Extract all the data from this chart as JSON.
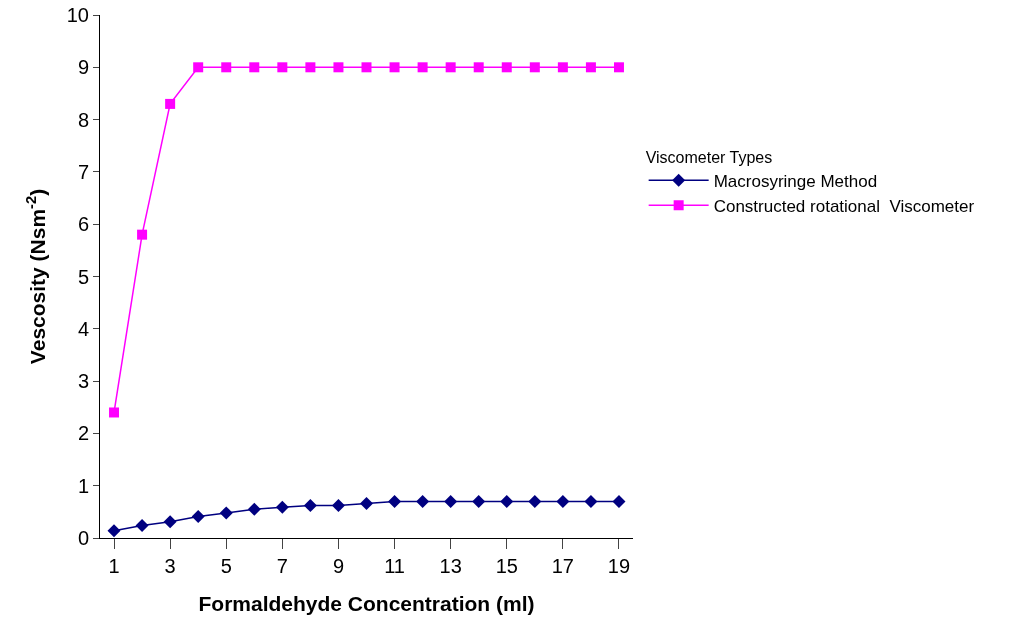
{
  "chart_data": {
    "type": "line",
    "xlabel": "Formaldehyde Concentration (ml)",
    "ylabel": "Vescosity (Nsm$^{-2}$)",
    "legend_title": "Viscometer Types",
    "x": [
      1,
      2,
      3,
      4,
      5,
      6,
      7,
      8,
      9,
      10,
      11,
      12,
      13,
      14,
      15,
      16,
      17,
      18,
      19
    ],
    "series": [
      {
        "name": "Macrosyringe Method",
        "color": "#000080",
        "marker": "diamond",
        "values": [
          0.14,
          0.24,
          0.31,
          0.41,
          0.48,
          0.55,
          0.59,
          0.62,
          0.62,
          0.66,
          0.7,
          0.7,
          0.7,
          0.7,
          0.7,
          0.7,
          0.7,
          0.7,
          0.7
        ]
      },
      {
        "name": "Constructed rotational  Viscometer",
        "color": "#ff00ff",
        "marker": "square",
        "values": [
          2.4,
          5.8,
          8.3,
          9,
          9,
          9,
          9,
          9,
          9,
          9,
          9,
          9,
          9,
          9,
          9,
          9,
          9,
          9,
          9
        ]
      }
    ],
    "xlim": [
      0.5,
      19.5
    ],
    "xticks": [
      1,
      3,
      5,
      7,
      9,
      11,
      13,
      15,
      17,
      19
    ],
    "ylim": [
      0,
      10
    ],
    "yticks": [
      0,
      1,
      2,
      3,
      4,
      5,
      6,
      7,
      8,
      9,
      10
    ],
    "grid": false,
    "legend": "right"
  }
}
